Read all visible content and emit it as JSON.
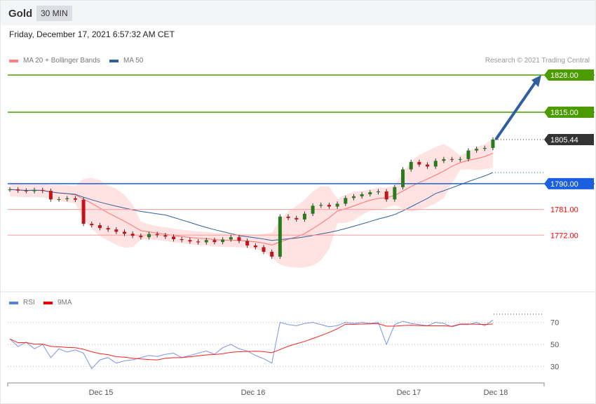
{
  "header": {
    "title": "Gold",
    "interval": "30 MIN",
    "datetime": "Friday, December 17, 2021 6:57:32 AM CET"
  },
  "credit": "Research © 2021 Trading Central",
  "chart_data": [
    {
      "type": "candlestick",
      "legend": [
        {
          "name": "MA 20 + Bollinger Bands",
          "color": "#ff8080"
        },
        {
          "name": "MA 50",
          "color": "#2f5f9e"
        }
      ],
      "price_levels": [
        {
          "value": "1828.00",
          "color": "#4a9c00",
          "kind": "resistance"
        },
        {
          "value": "1815.00",
          "color": "#4a9c00",
          "kind": "resistance"
        },
        {
          "value": "1805.44",
          "color": "#333333",
          "kind": "last"
        },
        {
          "value": "1790.00",
          "color": "#1a5fe0",
          "kind": "pivot"
        },
        {
          "value": "1781.00",
          "color": "#ff0000",
          "kind": "support"
        },
        {
          "value": "1772.00",
          "color": "#ff0000",
          "kind": "support"
        }
      ],
      "closes": [
        1788,
        1787.6,
        1787.4,
        1787.8,
        1787.5,
        1784.5,
        1784.6,
        1784.9,
        1784.4,
        1776,
        1775.5,
        1774.5,
        1774,
        1773.2,
        1772.5,
        1771.8,
        1771.3,
        1772.4,
        1772,
        1771.5,
        1770.6,
        1770.3,
        1769.8,
        1769.5,
        1770.3,
        1769.6,
        1770.5,
        1771.3,
        1770,
        1768.4,
        1767.8,
        1766.2,
        1764.5,
        1778.5,
        1778,
        1777.5,
        1779.5,
        1782.3,
        1782.6,
        1782,
        1783,
        1785,
        1785.6,
        1786.3,
        1787,
        1787.3,
        1784.5,
        1788.8,
        1795,
        1797.6,
        1796.7,
        1796,
        1798,
        1798.6,
        1798.4,
        1798.6,
        1801.6,
        1802.2,
        1802.5,
        1805.44
      ],
      "arrow": {
        "from": 1805.44,
        "to": 1828.0
      },
      "x_ticks": [
        "Dec 15",
        "Dec 16",
        "Dec 17",
        "Dec 18"
      ]
    },
    {
      "type": "line",
      "legend": [
        {
          "name": "RSI",
          "color": "#5b7fde"
        },
        {
          "name": "9MA",
          "color": "#ff0000"
        }
      ],
      "y_ticks": [
        "70",
        "50",
        "30"
      ],
      "rsi": [
        55,
        48,
        52,
        46,
        50,
        38,
        46,
        43,
        45,
        42,
        28,
        36,
        38,
        33,
        35,
        36,
        38,
        40,
        39,
        41,
        42,
        38,
        40,
        42,
        44,
        41,
        47,
        50,
        46,
        44,
        40,
        37,
        33,
        70,
        68,
        67,
        69,
        70,
        68,
        66,
        67,
        70,
        69,
        70,
        69,
        70,
        50,
        68,
        71,
        69,
        68,
        67,
        70,
        69,
        66,
        68,
        68,
        70,
        67,
        72
      ]
    }
  ]
}
